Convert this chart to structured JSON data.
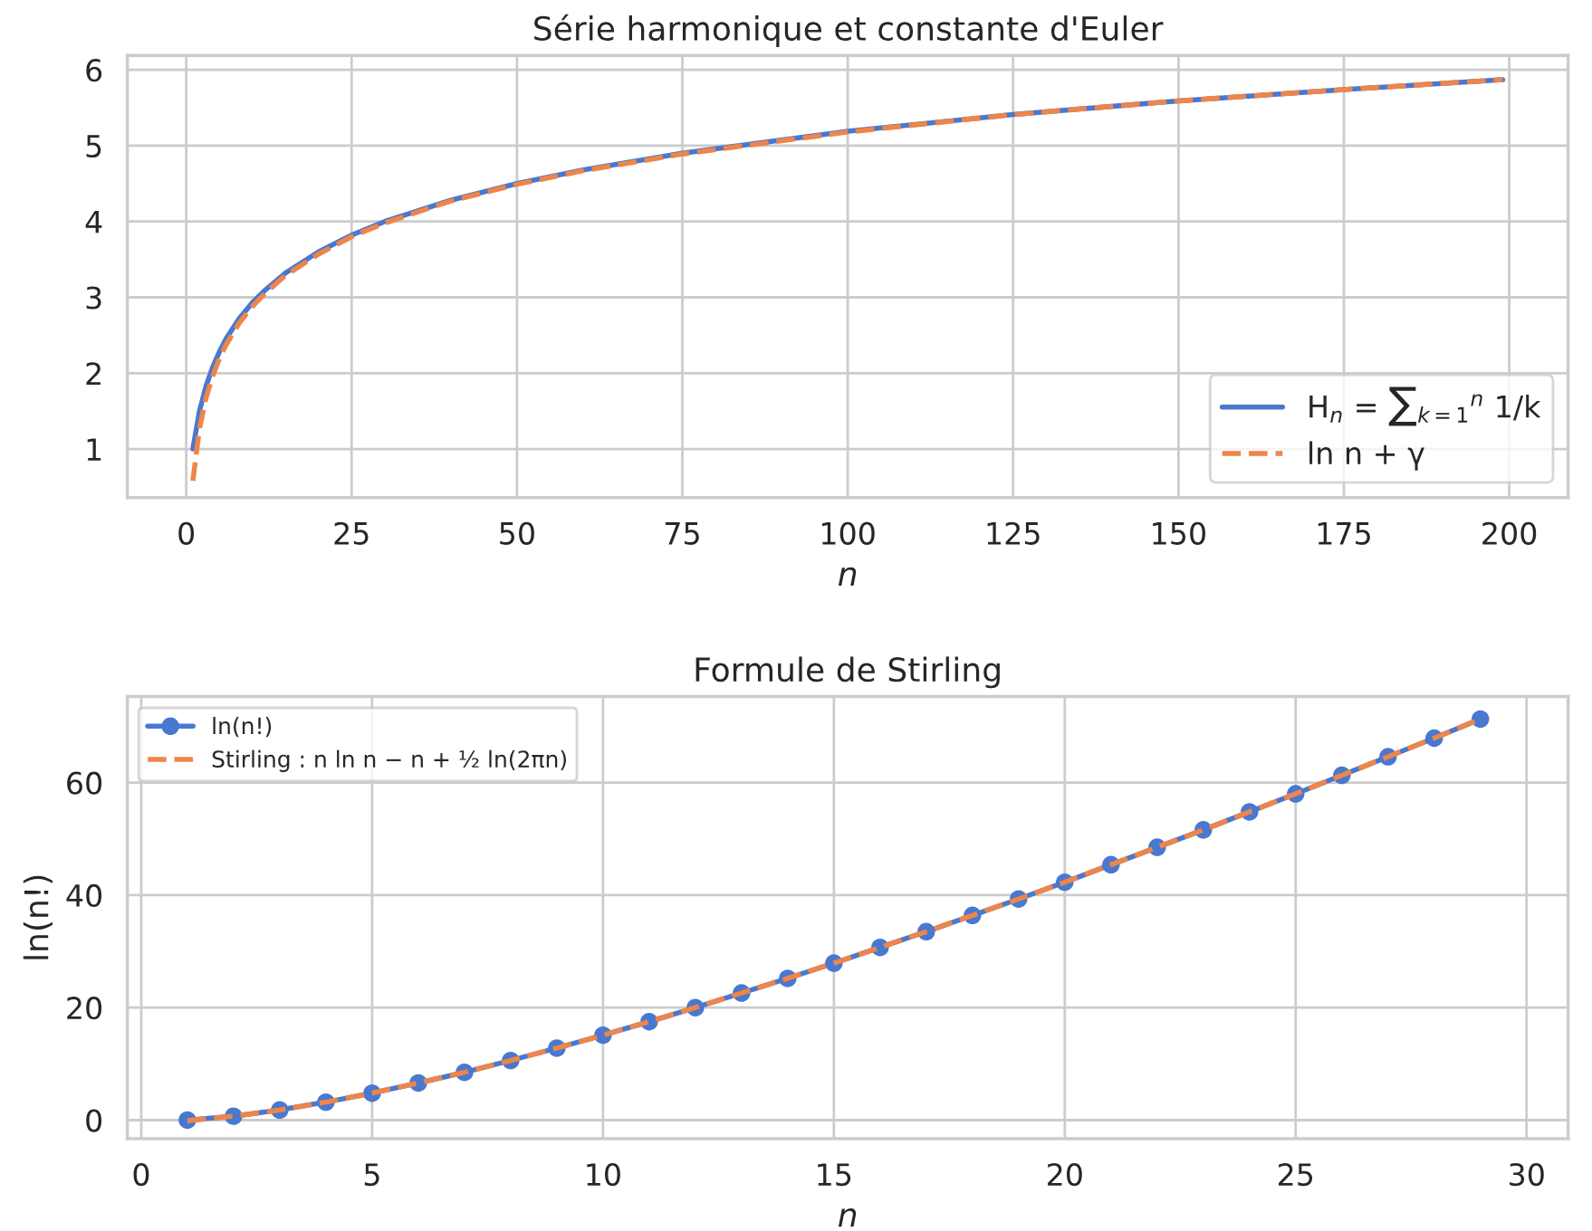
{
  "chart_data": [
    {
      "type": "line",
      "title": "Série harmonique et constante d'Euler",
      "xlabel": "n",
      "xlim": [
        -8.9,
        208.9
      ],
      "ylim": [
        0.36,
        6.19
      ],
      "xticks": [
        0,
        25,
        50,
        75,
        100,
        125,
        150,
        175,
        200
      ],
      "yticks": [
        1,
        2,
        3,
        4,
        5,
        6
      ],
      "grid": true,
      "legend": "bottom right",
      "series": [
        {
          "name": "H$_{n}$ = ∑$_{k=1}$$^{n}$ 1/k",
          "color": "#4878d0",
          "line_style": "solid",
          "marker": "none",
          "x": [
            1,
            2,
            3,
            4,
            5,
            6,
            8,
            10,
            12,
            15,
            20,
            25,
            30,
            40,
            50,
            60,
            75,
            100,
            125,
            150,
            175,
            199
          ],
          "values": [
            1,
            1.5,
            1.83,
            2.08,
            2.28,
            2.45,
            2.72,
            2.93,
            3.1,
            3.32,
            3.6,
            3.82,
            4.0,
            4.28,
            4.5,
            4.68,
            4.9,
            5.19,
            5.41,
            5.59,
            5.74,
            5.87
          ]
        },
        {
          "name": "ln n + γ",
          "color": "#ee854a",
          "line_style": "dashed",
          "marker": "none",
          "x": [
            1,
            2,
            3,
            4,
            5,
            6,
            8,
            10,
            12,
            15,
            20,
            25,
            30,
            40,
            50,
            60,
            75,
            100,
            125,
            150,
            175,
            199
          ],
          "values": [
            0.58,
            1.27,
            1.68,
            1.96,
            2.19,
            2.37,
            2.66,
            2.88,
            3.06,
            3.29,
            3.57,
            3.8,
            3.98,
            4.27,
            4.49,
            4.67,
            4.89,
            5.18,
            5.41,
            5.59,
            5.74,
            5.87
          ]
        }
      ]
    },
    {
      "type": "line",
      "title": "Formule de Stirling",
      "xlabel": "n",
      "ylabel": "ln(n!)",
      "xlim": [
        -0.3,
        30.9
      ],
      "ylim": [
        -3.3,
        75.3
      ],
      "xticks": [
        0,
        5,
        10,
        15,
        20,
        25,
        30
      ],
      "yticks": [
        0,
        20,
        40,
        60
      ],
      "grid": true,
      "legend": "top left",
      "series": [
        {
          "name": "ln(n!)",
          "color": "#4878d0",
          "line_style": "solid",
          "marker": "circle",
          "x": [
            1,
            2,
            3,
            4,
            5,
            6,
            7,
            8,
            9,
            10,
            11,
            12,
            13,
            14,
            15,
            16,
            17,
            18,
            19,
            20,
            21,
            22,
            23,
            24,
            25,
            26,
            27,
            28,
            29
          ],
          "values": [
            0,
            0.7,
            1.8,
            3.2,
            4.8,
            6.6,
            8.5,
            10.6,
            12.8,
            15.1,
            17.5,
            20.0,
            22.6,
            25.2,
            27.9,
            30.7,
            33.5,
            36.4,
            39.3,
            42.3,
            45.4,
            48.5,
            51.6,
            54.8,
            58.0,
            61.3,
            64.6,
            67.9,
            71.3
          ]
        },
        {
          "name": "Stirling : n ln n − n + ½ ln(2πn)",
          "color": "#ee854a",
          "line_style": "dashed",
          "marker": "none",
          "x": [
            1,
            2,
            3,
            4,
            5,
            6,
            7,
            8,
            9,
            10,
            11,
            12,
            13,
            14,
            15,
            16,
            17,
            18,
            19,
            20,
            21,
            22,
            23,
            24,
            25,
            26,
            27,
            28,
            29
          ],
          "values": [
            -0.1,
            0.7,
            1.8,
            3.2,
            4.8,
            6.6,
            8.5,
            10.6,
            12.8,
            15.1,
            17.5,
            20.0,
            22.6,
            25.2,
            27.9,
            30.7,
            33.5,
            36.4,
            39.3,
            42.3,
            45.4,
            48.5,
            51.6,
            54.8,
            58.0,
            61.3,
            64.6,
            67.9,
            71.3
          ]
        }
      ]
    }
  ]
}
